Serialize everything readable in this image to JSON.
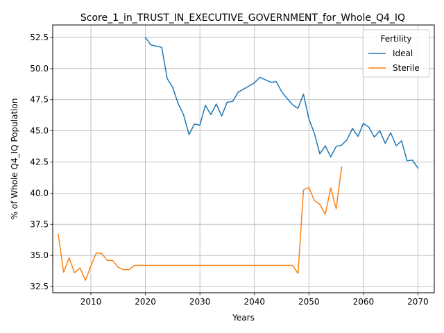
{
  "chart_data": {
    "type": "line",
    "title": "Score_1_in_TRUST_IN_EXECUTIVE_GOVERNMENT_for_Whole_Q4_IQ",
    "xlabel": "Years",
    "ylabel": "% of Whole Q4_IQ Population",
    "xlim": [
      2003,
      2073
    ],
    "ylim": [
      32.0,
      53.5
    ],
    "xticks": [
      2010,
      2020,
      2030,
      2040,
      2050,
      2060,
      2070
    ],
    "yticks": [
      32.5,
      35.0,
      37.5,
      40.0,
      42.5,
      45.0,
      47.5,
      50.0,
      52.5
    ],
    "grid": true,
    "legend": {
      "title": "Fertility",
      "placement": "top-right"
    },
    "series": [
      {
        "name": "Ideal",
        "color": "#1f77b4",
        "x": [
          2020,
          2021,
          2022,
          2023,
          2024,
          2025,
          2026,
          2027,
          2028,
          2029,
          2030,
          2031,
          2032,
          2033,
          2034,
          2035,
          2036,
          2037,
          2038,
          2039,
          2040,
          2041,
          2042,
          2043,
          2044,
          2045,
          2046,
          2047,
          2048,
          2049,
          2050,
          2051,
          2052,
          2053,
          2054,
          2055,
          2056,
          2057,
          2058,
          2059,
          2060,
          2061,
          2062,
          2063,
          2064,
          2065,
          2066,
          2067,
          2068,
          2069,
          2070
        ],
        "y": [
          52.5,
          51.9,
          51.8,
          51.7,
          49.2,
          48.5,
          47.2,
          46.3,
          44.7,
          45.55,
          45.45,
          47.05,
          46.3,
          47.15,
          46.2,
          47.3,
          47.35,
          48.1,
          48.35,
          48.6,
          48.85,
          49.3,
          49.1,
          48.9,
          48.95,
          48.15,
          47.6,
          47.1,
          46.8,
          47.95,
          45.95,
          44.8,
          43.15,
          43.8,
          42.9,
          43.75,
          43.85,
          44.3,
          45.2,
          44.55,
          45.6,
          45.3,
          44.5,
          45.0,
          44.0,
          44.85,
          43.8,
          44.2,
          42.6,
          42.65,
          42.0
        ]
      },
      {
        "name": "Sterile",
        "color": "#ff7f0e",
        "x": [
          2004,
          2005,
          2006,
          2007,
          2008,
          2009,
          2010,
          2011,
          2012,
          2013,
          2014,
          2015,
          2016,
          2017,
          2018,
          2019,
          2020,
          2021,
          2022,
          2023,
          2024,
          2025,
          2026,
          2027,
          2028,
          2029,
          2030,
          2031,
          2032,
          2033,
          2034,
          2035,
          2036,
          2037,
          2038,
          2039,
          2040,
          2041,
          2042,
          2043,
          2044,
          2045,
          2046,
          2047,
          2048,
          2049,
          2050,
          2051,
          2052,
          2053,
          2054,
          2055,
          2056
        ],
        "y": [
          36.7,
          33.65,
          34.8,
          33.6,
          34.0,
          33.0,
          34.15,
          35.2,
          35.15,
          34.6,
          34.6,
          34.05,
          33.85,
          33.85,
          34.2,
          34.2,
          34.2,
          34.2,
          34.2,
          34.2,
          34.2,
          34.2,
          34.2,
          34.2,
          34.2,
          34.2,
          34.2,
          34.2,
          34.2,
          34.2,
          34.2,
          34.2,
          34.2,
          34.2,
          34.2,
          34.2,
          34.2,
          34.2,
          34.2,
          34.2,
          34.2,
          34.2,
          34.2,
          34.2,
          33.55,
          40.25,
          40.45,
          39.4,
          39.1,
          38.3,
          40.4,
          38.75,
          42.1
        ]
      }
    ]
  }
}
